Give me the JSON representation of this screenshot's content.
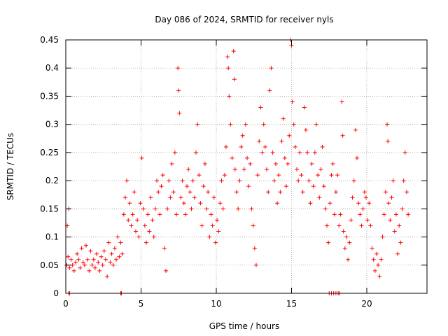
{
  "chart_data": {
    "type": "scatter",
    "title": "Day 086 of 2024, SRMTID for receiver nyls",
    "xlabel": "GPS time / hours",
    "ylabel": "SRMTID / TECUs",
    "xlim": [
      0,
      24
    ],
    "ylim": [
      0,
      0.45
    ],
    "grid": true,
    "legend": "none",
    "x_ticks": [
      0,
      5,
      10,
      15,
      20
    ],
    "x_tick_labels": [
      "0",
      "5",
      "10",
      "15",
      "20"
    ],
    "y_ticks": [
      0,
      0.05,
      0.1,
      0.15,
      0.2,
      0.25,
      0.3,
      0.35,
      0.4,
      0.45
    ],
    "y_tick_labels": [
      "0",
      "0.05",
      "0.1",
      "0.15",
      "0.2",
      "0.25",
      "0.3",
      "0.35",
      "0.4",
      "0.45"
    ],
    "marker": "+",
    "color": "#ff0000",
    "series": [
      {
        "name": "SRMTID",
        "points": [
          [
            0.05,
            0.05
          ],
          [
            0.1,
            0.12
          ],
          [
            0.15,
            0.065
          ],
          [
            0.2,
            0.15
          ],
          [
            0.25,
            0.045
          ],
          [
            0.35,
            0.06
          ],
          [
            0.45,
            0.05
          ],
          [
            0.55,
            0.04
          ],
          [
            0.65,
            0.055
          ],
          [
            0.75,
            0.07
          ],
          [
            0.85,
            0.06
          ],
          [
            0.95,
            0.045
          ],
          [
            1.05,
            0.08
          ],
          [
            1.15,
            0.055
          ],
          [
            1.25,
            0.05
          ],
          [
            1.35,
            0.085
          ],
          [
            1.45,
            0.06
          ],
          [
            1.55,
            0.04
          ],
          [
            1.65,
            0.075
          ],
          [
            1.75,
            0.05
          ],
          [
            1.85,
            0.06
          ],
          [
            1.95,
            0.045
          ],
          [
            2.05,
            0.07
          ],
          [
            2.15,
            0.055
          ],
          [
            2.25,
            0.04
          ],
          [
            2.35,
            0.065
          ],
          [
            2.45,
            0.05
          ],
          [
            2.55,
            0.075
          ],
          [
            2.65,
            0.06
          ],
          [
            2.75,
            0.03
          ],
          [
            2.85,
            0.09
          ],
          [
            2.95,
            0.055
          ],
          [
            3.05,
            0.07
          ],
          [
            3.15,
            0.05
          ],
          [
            3.25,
            0.08
          ],
          [
            3.35,
            0.06
          ],
          [
            3.45,
            0.1
          ],
          [
            3.55,
            0.065
          ],
          [
            3.65,
            0.09
          ],
          [
            3.75,
            0.07
          ],
          [
            3.85,
            0.14
          ],
          [
            3.95,
            0.17
          ],
          [
            4.05,
            0.2
          ],
          [
            4.15,
            0.13
          ],
          [
            4.25,
            0.16
          ],
          [
            4.35,
            0.12
          ],
          [
            4.45,
            0.14
          ],
          [
            4.55,
            0.18
          ],
          [
            4.65,
            0.11
          ],
          [
            4.75,
            0.13
          ],
          [
            4.85,
            0.1
          ],
          [
            4.95,
            0.16
          ],
          [
            5.05,
            0.24
          ],
          [
            5.15,
            0.15
          ],
          [
            5.25,
            0.12
          ],
          [
            5.35,
            0.09
          ],
          [
            5.45,
            0.14
          ],
          [
            5.55,
            0.11
          ],
          [
            5.65,
            0.17
          ],
          [
            5.75,
            0.13
          ],
          [
            5.85,
            0.1
          ],
          [
            5.95,
            0.15
          ],
          [
            6.05,
            0.2
          ],
          [
            6.15,
            0.18
          ],
          [
            6.25,
            0.14
          ],
          [
            6.35,
            0.19
          ],
          [
            6.45,
            0.21
          ],
          [
            6.55,
            0.08
          ],
          [
            6.65,
            0.04
          ],
          [
            6.75,
            0.15
          ],
          [
            6.85,
            0.2
          ],
          [
            6.95,
            0.17
          ],
          [
            7.05,
            0.23
          ],
          [
            7.15,
            0.18
          ],
          [
            7.25,
            0.25
          ],
          [
            7.35,
            0.14
          ],
          [
            7.45,
            0.4
          ],
          [
            7.5,
            0.36
          ],
          [
            7.55,
            0.32
          ],
          [
            7.65,
            0.17
          ],
          [
            7.75,
            0.2
          ],
          [
            7.85,
            0.16
          ],
          [
            7.95,
            0.14
          ],
          [
            8.05,
            0.19
          ],
          [
            8.15,
            0.22
          ],
          [
            8.25,
            0.18
          ],
          [
            8.35,
            0.15
          ],
          [
            8.45,
            0.2
          ],
          [
            8.55,
            0.17
          ],
          [
            8.65,
            0.25
          ],
          [
            8.75,
            0.3
          ],
          [
            8.85,
            0.21
          ],
          [
            8.95,
            0.16
          ],
          [
            9.05,
            0.12
          ],
          [
            9.15,
            0.19
          ],
          [
            9.25,
            0.23
          ],
          [
            9.35,
            0.15
          ],
          [
            9.45,
            0.18
          ],
          [
            9.55,
            0.1
          ],
          [
            9.65,
            0.14
          ],
          [
            9.75,
            0.12
          ],
          [
            9.85,
            0.17
          ],
          [
            9.95,
            0.09
          ],
          [
            10.05,
            0.13
          ],
          [
            10.15,
            0.11
          ],
          [
            10.25,
            0.16
          ],
          [
            10.35,
            0.2
          ],
          [
            10.45,
            0.15
          ],
          [
            10.55,
            0.21
          ],
          [
            10.65,
            0.26
          ],
          [
            10.75,
            0.42
          ],
          [
            10.8,
            0.4
          ],
          [
            10.85,
            0.35
          ],
          [
            10.95,
            0.3
          ],
          [
            11.05,
            0.24
          ],
          [
            11.15,
            0.43
          ],
          [
            11.2,
            0.38
          ],
          [
            11.25,
            0.22
          ],
          [
            11.35,
            0.18
          ],
          [
            11.45,
            0.15
          ],
          [
            11.55,
            0.2
          ],
          [
            11.65,
            0.26
          ],
          [
            11.75,
            0.28
          ],
          [
            11.85,
            0.22
          ],
          [
            11.95,
            0.3
          ],
          [
            12.05,
            0.24
          ],
          [
            12.15,
            0.19
          ],
          [
            12.25,
            0.23
          ],
          [
            12.35,
            0.15
          ],
          [
            12.45,
            0.12
          ],
          [
            12.55,
            0.08
          ],
          [
            12.65,
            0.05
          ],
          [
            12.75,
            0.21
          ],
          [
            12.85,
            0.27
          ],
          [
            12.95,
            0.33
          ],
          [
            13.05,
            0.25
          ],
          [
            13.15,
            0.3
          ],
          [
            13.25,
            0.26
          ],
          [
            13.35,
            0.22
          ],
          [
            13.45,
            0.18
          ],
          [
            13.55,
            0.36
          ],
          [
            13.65,
            0.4
          ],
          [
            13.75,
            0.25
          ],
          [
            13.85,
            0.2
          ],
          [
            13.95,
            0.23
          ],
          [
            14.05,
            0.16
          ],
          [
            14.15,
            0.21
          ],
          [
            14.25,
            0.18
          ],
          [
            14.35,
            0.27
          ],
          [
            14.45,
            0.31
          ],
          [
            14.55,
            0.24
          ],
          [
            14.65,
            0.19
          ],
          [
            14.75,
            0.23
          ],
          [
            14.85,
            0.28
          ],
          [
            14.95,
            0.45
          ],
          [
            15.0,
            0.44
          ],
          [
            15.05,
            0.34
          ],
          [
            15.15,
            0.3
          ],
          [
            15.25,
            0.26
          ],
          [
            15.35,
            0.22
          ],
          [
            15.45,
            0.2
          ],
          [
            15.55,
            0.25
          ],
          [
            15.65,
            0.21
          ],
          [
            15.75,
            0.18
          ],
          [
            15.85,
            0.33
          ],
          [
            15.95,
            0.29
          ],
          [
            16.05,
            0.25
          ],
          [
            16.15,
            0.2
          ],
          [
            16.25,
            0.16
          ],
          [
            16.35,
            0.23
          ],
          [
            16.45,
            0.19
          ],
          [
            16.55,
            0.25
          ],
          [
            16.65,
            0.3
          ],
          [
            16.75,
            0.21
          ],
          [
            16.85,
            0.17
          ],
          [
            16.95,
            0.22
          ],
          [
            17.05,
            0.26
          ],
          [
            17.15,
            0.19
          ],
          [
            17.25,
            0.15
          ],
          [
            17.35,
            0.12
          ],
          [
            17.45,
            0.09
          ],
          [
            17.55,
            0.16
          ],
          [
            17.65,
            0.21
          ],
          [
            17.75,
            0.23
          ],
          [
            17.85,
            0.14
          ],
          [
            17.95,
            0.18
          ],
          [
            18.05,
            0.21
          ],
          [
            18.15,
            0.12
          ],
          [
            18.25,
            0.14
          ],
          [
            18.35,
            0.34
          ],
          [
            18.4,
            0.28
          ],
          [
            18.45,
            0.11
          ],
          [
            18.55,
            0.08
          ],
          [
            18.65,
            0.1
          ],
          [
            18.75,
            0.06
          ],
          [
            18.85,
            0.09
          ],
          [
            18.95,
            0.13
          ],
          [
            19.05,
            0.17
          ],
          [
            19.15,
            0.2
          ],
          [
            19.25,
            0.29
          ],
          [
            19.35,
            0.24
          ],
          [
            19.45,
            0.16
          ],
          [
            19.55,
            0.14
          ],
          [
            19.65,
            0.12
          ],
          [
            19.75,
            0.15
          ],
          [
            19.85,
            0.18
          ],
          [
            19.95,
            0.17
          ],
          [
            20.05,
            0.13
          ],
          [
            20.15,
            0.16
          ],
          [
            20.25,
            0.12
          ],
          [
            20.35,
            0.08
          ],
          [
            20.45,
            0.06
          ],
          [
            20.55,
            0.04
          ],
          [
            20.65,
            0.07
          ],
          [
            20.75,
            0.05
          ],
          [
            20.85,
            0.03
          ],
          [
            20.95,
            0.06
          ],
          [
            21.05,
            0.1
          ],
          [
            21.15,
            0.14
          ],
          [
            21.25,
            0.18
          ],
          [
            21.35,
            0.3
          ],
          [
            21.4,
            0.27
          ],
          [
            21.45,
            0.16
          ],
          [
            21.55,
            0.13
          ],
          [
            21.65,
            0.17
          ],
          [
            21.75,
            0.2
          ],
          [
            21.85,
            0.11
          ],
          [
            21.95,
            0.14
          ],
          [
            22.05,
            0.07
          ],
          [
            22.15,
            0.12
          ],
          [
            22.25,
            0.09
          ],
          [
            22.35,
            0.15
          ],
          [
            22.45,
            0.2
          ],
          [
            22.55,
            0.25
          ],
          [
            22.65,
            0.18
          ],
          [
            22.75,
            0.14
          ]
        ]
      }
    ],
    "zero_points_x": [
      0.2,
      0.25,
      3.65,
      3.7,
      17.5,
      17.65,
      17.8,
      17.95,
      18.1,
      18.2
    ]
  }
}
